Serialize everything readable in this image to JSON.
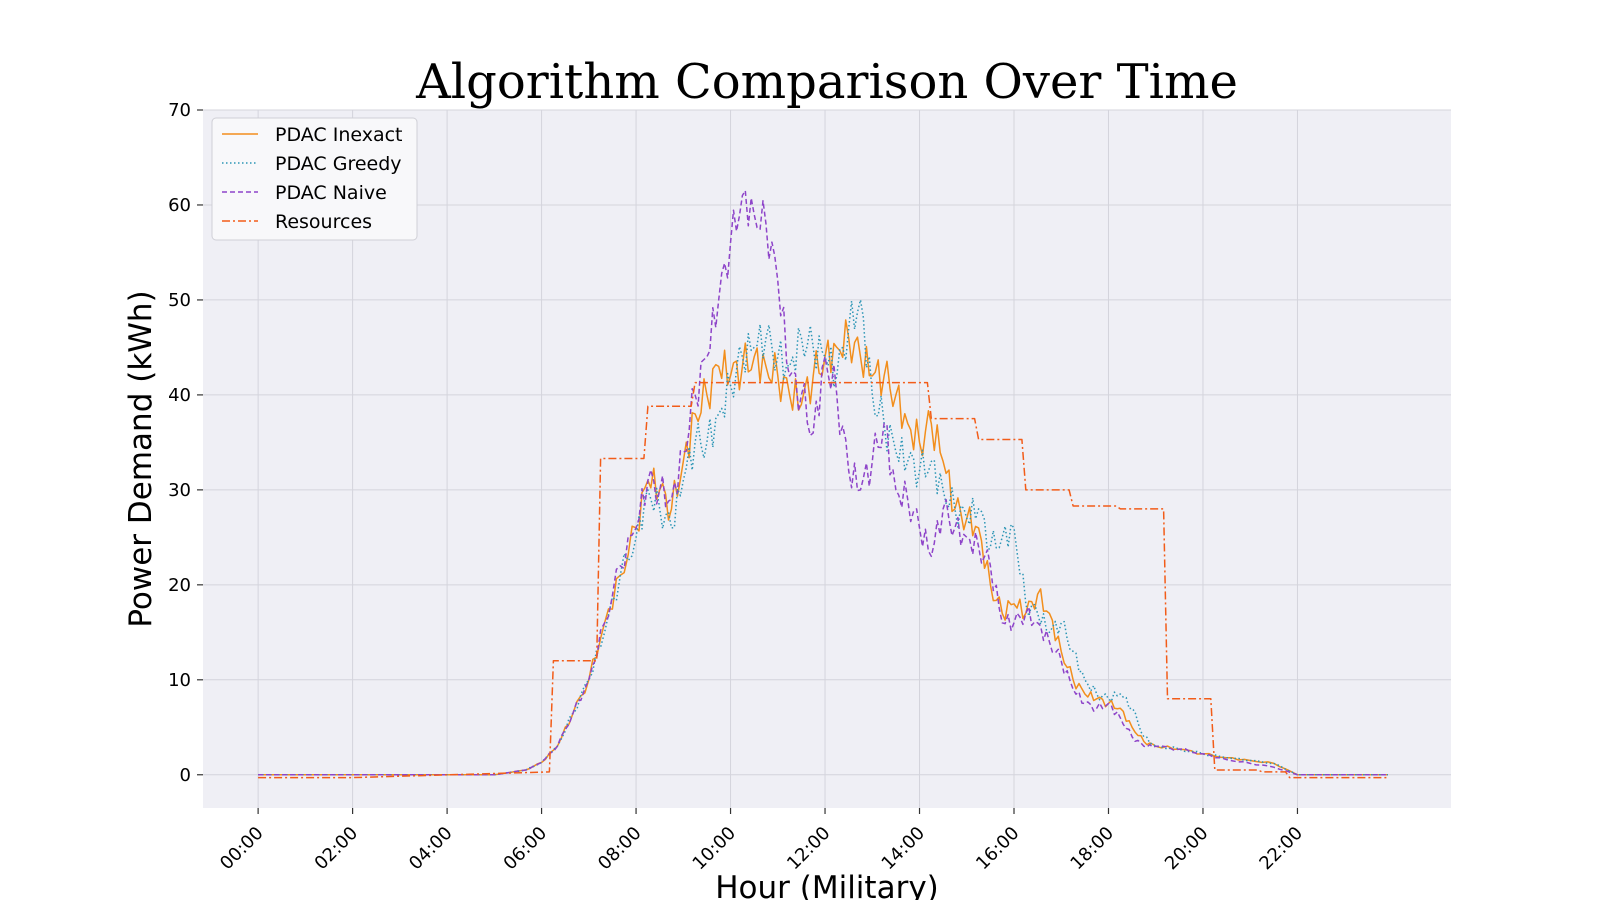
{
  "chart_data": {
    "type": "line",
    "title": "Algorithm Comparison Over Time",
    "xlabel": "Hour (Military)",
    "ylabel": "Power Demand (kWh)",
    "xlim": [
      "-01:10",
      "25:15"
    ],
    "ylim": [
      -3.5,
      70
    ],
    "x_ticks": [
      "00:00",
      "02:00",
      "04:00",
      "06:00",
      "08:00",
      "10:00",
      "12:00",
      "14:00",
      "16:00",
      "18:00",
      "20:00",
      "22:00"
    ],
    "y_ticks": [
      0,
      10,
      20,
      30,
      40,
      50,
      60,
      70
    ],
    "grid": true,
    "legend_position": "top-left",
    "series": [
      {
        "name": "PDAC Inexact",
        "color": "#f28e1c",
        "style": "solid",
        "x": [
          "00:00",
          "05:00",
          "05:40",
          "06:00",
          "06:20",
          "06:40",
          "07:00",
          "07:20",
          "07:40",
          "08:00",
          "08:15",
          "08:30",
          "08:45",
          "09:00",
          "09:15",
          "09:30",
          "09:45",
          "10:00",
          "10:15",
          "10:30",
          "10:45",
          "11:00",
          "11:15",
          "11:30",
          "11:45",
          "12:00",
          "12:15",
          "12:30",
          "12:45",
          "13:00",
          "13:15",
          "13:30",
          "13:45",
          "14:00",
          "14:15",
          "14:30",
          "14:45",
          "15:00",
          "15:15",
          "15:30",
          "15:45",
          "16:00",
          "16:15",
          "16:30",
          "16:45",
          "17:00",
          "17:15",
          "17:30",
          "17:45",
          "18:00",
          "18:15",
          "18:30",
          "18:45",
          "19:00",
          "19:30",
          "20:00",
          "20:30",
          "21:00",
          "21:30",
          "22:00",
          "23:00",
          "23:55"
        ],
        "values": [
          0,
          0,
          0.5,
          1.3,
          3,
          6.5,
          10,
          16,
          21,
          26,
          31,
          30,
          28,
          33,
          38,
          40,
          43,
          42,
          43,
          44,
          43,
          42,
          40,
          39,
          42,
          44,
          45,
          46,
          44,
          42,
          42,
          40,
          37,
          35,
          37,
          33,
          28,
          27,
          26,
          20,
          17,
          18,
          17,
          19,
          17,
          13,
          10,
          8.5,
          8,
          7.5,
          7,
          5,
          3.5,
          3,
          2.7,
          2.2,
          1.8,
          1.5,
          1.2,
          0,
          0,
          0
        ]
      },
      {
        "name": "PDAC Greedy",
        "color": "#2a95b5",
        "style": "dotted",
        "x": [
          "00:00",
          "05:00",
          "05:40",
          "06:00",
          "06:20",
          "06:40",
          "07:00",
          "07:20",
          "07:40",
          "08:00",
          "08:15",
          "08:30",
          "08:45",
          "09:00",
          "09:15",
          "09:30",
          "09:45",
          "10:00",
          "10:15",
          "10:30",
          "10:45",
          "11:00",
          "11:15",
          "11:30",
          "11:45",
          "12:00",
          "12:15",
          "12:30",
          "12:45",
          "13:00",
          "13:15",
          "13:30",
          "13:45",
          "14:00",
          "14:15",
          "14:30",
          "14:45",
          "15:00",
          "15:15",
          "15:30",
          "15:45",
          "16:00",
          "16:15",
          "16:30",
          "16:45",
          "17:00",
          "17:15",
          "17:30",
          "17:45",
          "18:00",
          "18:15",
          "18:30",
          "18:45",
          "19:00",
          "19:30",
          "20:00",
          "20:30",
          "21:00",
          "21:30",
          "22:00",
          "23:00",
          "23:55"
        ],
        "values": [
          0,
          0,
          0.5,
          1.3,
          3,
          6.5,
          10,
          15,
          21,
          25,
          30,
          28,
          26,
          31,
          35,
          35,
          38,
          41,
          44,
          45,
          46,
          44,
          43,
          46,
          45,
          44,
          42,
          47,
          50,
          40,
          37,
          34,
          33,
          32,
          33,
          30,
          28,
          27,
          28,
          24,
          25,
          26,
          18,
          17,
          15,
          16,
          13,
          10,
          8.5,
          8,
          8.5,
          7,
          4,
          3,
          2.7,
          2.2,
          1.8,
          1.5,
          1.2,
          0,
          0,
          0
        ]
      },
      {
        "name": "PDAC Naive",
        "color": "#8e44c9",
        "style": "dashed",
        "x": [
          "00:00",
          "05:00",
          "05:40",
          "06:00",
          "06:20",
          "06:40",
          "07:00",
          "07:20",
          "07:40",
          "08:00",
          "08:15",
          "08:30",
          "08:45",
          "09:00",
          "09:15",
          "09:30",
          "09:45",
          "10:00",
          "10:15",
          "10:30",
          "10:45",
          "11:00",
          "11:15",
          "11:30",
          "11:45",
          "12:00",
          "12:15",
          "12:30",
          "12:45",
          "13:00",
          "13:15",
          "13:30",
          "13:45",
          "14:00",
          "14:15",
          "14:30",
          "14:45",
          "15:00",
          "15:15",
          "15:30",
          "15:45",
          "16:00",
          "16:15",
          "16:30",
          "16:45",
          "17:00",
          "17:15",
          "17:30",
          "17:45",
          "18:00",
          "18:15",
          "18:30",
          "18:45",
          "19:00",
          "19:30",
          "20:00",
          "20:30",
          "21:00",
          "21:30",
          "22:00",
          "23:00",
          "23:55"
        ],
        "values": [
          0,
          0,
          0.5,
          1.3,
          3,
          6.5,
          10,
          16,
          22,
          26,
          31,
          30,
          29,
          34,
          40,
          44,
          50,
          56,
          61,
          59,
          58,
          52,
          42,
          40,
          36,
          44,
          40,
          32,
          30,
          33,
          37,
          30,
          29,
          26,
          23,
          28,
          26,
          25,
          24,
          22,
          16,
          16,
          17,
          16,
          14,
          12,
          9,
          7.5,
          7,
          7.5,
          6,
          4,
          3,
          3,
          2.7,
          2.2,
          1.6,
          1.2,
          0.8,
          0,
          0,
          0
        ]
      },
      {
        "name": "Resources",
        "color": "#f25c19",
        "style": "dashdot",
        "x": [
          "00:00",
          "01:55",
          "02:00",
          "06:10",
          "06:15",
          "07:10",
          "07:15",
          "08:10",
          "08:15",
          "09:10",
          "09:15",
          "14:10",
          "14:15",
          "15:10",
          "15:15",
          "16:10",
          "16:15",
          "17:10",
          "17:15",
          "18:10",
          "18:15",
          "19:10",
          "19:15",
          "20:10",
          "20:15",
          "21:10",
          "21:15",
          "21:45",
          "21:50",
          "23:55"
        ],
        "values": [
          -0.3,
          -0.3,
          -0.3,
          0.3,
          12,
          12,
          33.3,
          33.3,
          38.8,
          38.8,
          41.3,
          41.3,
          37.5,
          37.5,
          35.3,
          35.3,
          30,
          30,
          28.3,
          28.3,
          28,
          28,
          8,
          8,
          0.5,
          0.5,
          0.3,
          0.3,
          -0.3,
          -0.3
        ]
      }
    ]
  }
}
